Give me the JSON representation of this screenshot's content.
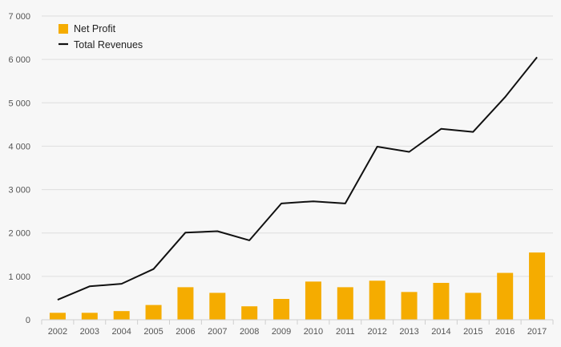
{
  "chart_data": {
    "type": "bar",
    "categories": [
      "2002",
      "2003",
      "2004",
      "2005",
      "2006",
      "2007",
      "2008",
      "2009",
      "2010",
      "2011",
      "2012",
      "2013",
      "2014",
      "2015",
      "2016",
      "2017"
    ],
    "series": [
      {
        "name": "Net Profit",
        "kind": "bar",
        "color": "#f5ac00",
        "values": [
          160,
          160,
          200,
          340,
          750,
          620,
          310,
          480,
          880,
          750,
          900,
          640,
          850,
          620,
          1080,
          1550
        ]
      },
      {
        "name": "Total Revenues",
        "kind": "line",
        "color": "#111111",
        "values": [
          460,
          770,
          830,
          1170,
          2010,
          2040,
          1830,
          2680,
          2730,
          2680,
          3990,
          3870,
          4400,
          4330,
          5130,
          6050
        ]
      }
    ],
    "title": "",
    "xlabel": "",
    "ylabel": "",
    "ylim": [
      0,
      7000
    ],
    "yticks": [
      0,
      1000,
      2000,
      3000,
      4000,
      5000,
      6000,
      7000
    ],
    "ytick_labels": [
      "0",
      "1 000",
      "2 000",
      "3 000",
      "4 000",
      "5 000",
      "6 000",
      "7 000"
    ],
    "grid": "horizontal",
    "legend_position": "top-left"
  }
}
